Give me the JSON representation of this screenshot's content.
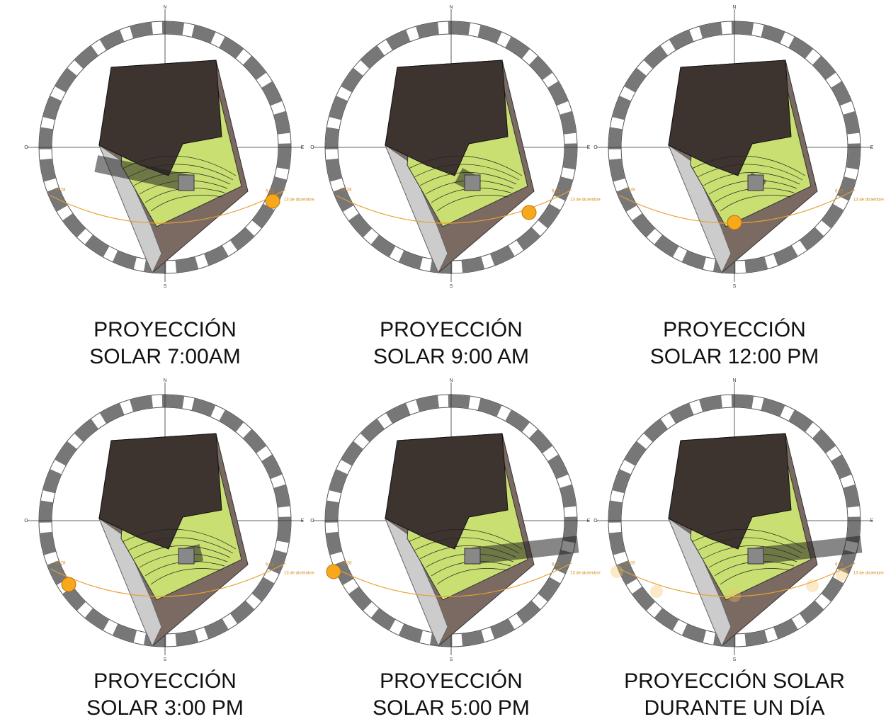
{
  "compass": {
    "north": "N",
    "south": "S",
    "east": "E",
    "west": "O"
  },
  "sun_path": {
    "date": "13 de diciembre",
    "sunset": "17:28",
    "sunrise": "6:21"
  },
  "panels": [
    {
      "title": [
        "PROYECCIÓN",
        "SOLAR 7:00AM"
      ]
    },
    {
      "title": [
        "PROYECCIÓN",
        "SOLAR 9:00 AM"
      ]
    },
    {
      "title": [
        "PROYECCIÓN",
        "SOLAR 12:00 PM"
      ]
    },
    {
      "title": [
        "PROYECCIÓN",
        "SOLAR 3:00 PM"
      ]
    },
    {
      "title": [
        "PROYECCIÓN",
        "SOLAR 5:00 PM"
      ]
    },
    {
      "title": [
        "PROYECCIÓN SOLAR",
        "DURANTE UN DÍA"
      ]
    }
  ]
}
